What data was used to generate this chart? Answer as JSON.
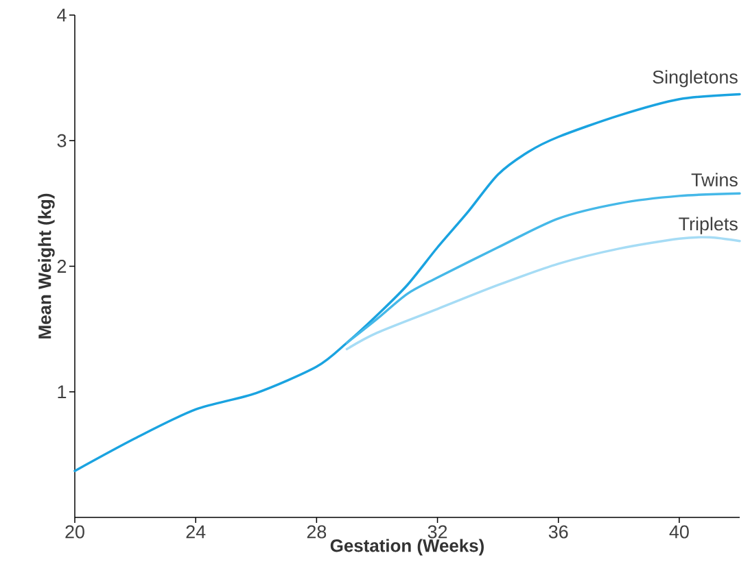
{
  "chart_data": {
    "type": "line",
    "xlabel": "Gestation (Weeks)",
    "ylabel": "Mean Weight (kg)",
    "xlim": [
      20,
      42
    ],
    "ylim": [
      0,
      4
    ],
    "xticks": [
      20,
      24,
      28,
      32,
      36,
      40
    ],
    "yticks": [
      1,
      2,
      3,
      4
    ],
    "series": [
      {
        "name": "Singletons",
        "color": "#1aa3e0",
        "x": [
          20,
          22,
          24,
          26,
          28,
          29,
          30,
          31,
          32,
          33,
          34,
          35,
          36,
          38,
          40,
          42
        ],
        "values": [
          0.37,
          0.63,
          0.86,
          0.99,
          1.2,
          1.39,
          1.61,
          1.85,
          2.15,
          2.43,
          2.73,
          2.91,
          3.03,
          3.2,
          3.33,
          3.37
        ]
      },
      {
        "name": "Twins",
        "color": "#45b8e8",
        "x": [
          29,
          30,
          31,
          32,
          34,
          36,
          38,
          40,
          42
        ],
        "values": [
          1.39,
          1.58,
          1.78,
          1.91,
          2.15,
          2.38,
          2.5,
          2.56,
          2.58
        ]
      },
      {
        "name": "Triplets",
        "color": "#a6dcf5",
        "x": [
          29,
          30,
          32,
          34,
          36,
          38,
          40,
          41,
          42
        ],
        "values": [
          1.34,
          1.47,
          1.66,
          1.85,
          2.02,
          2.14,
          2.22,
          2.23,
          2.2
        ]
      }
    ]
  }
}
